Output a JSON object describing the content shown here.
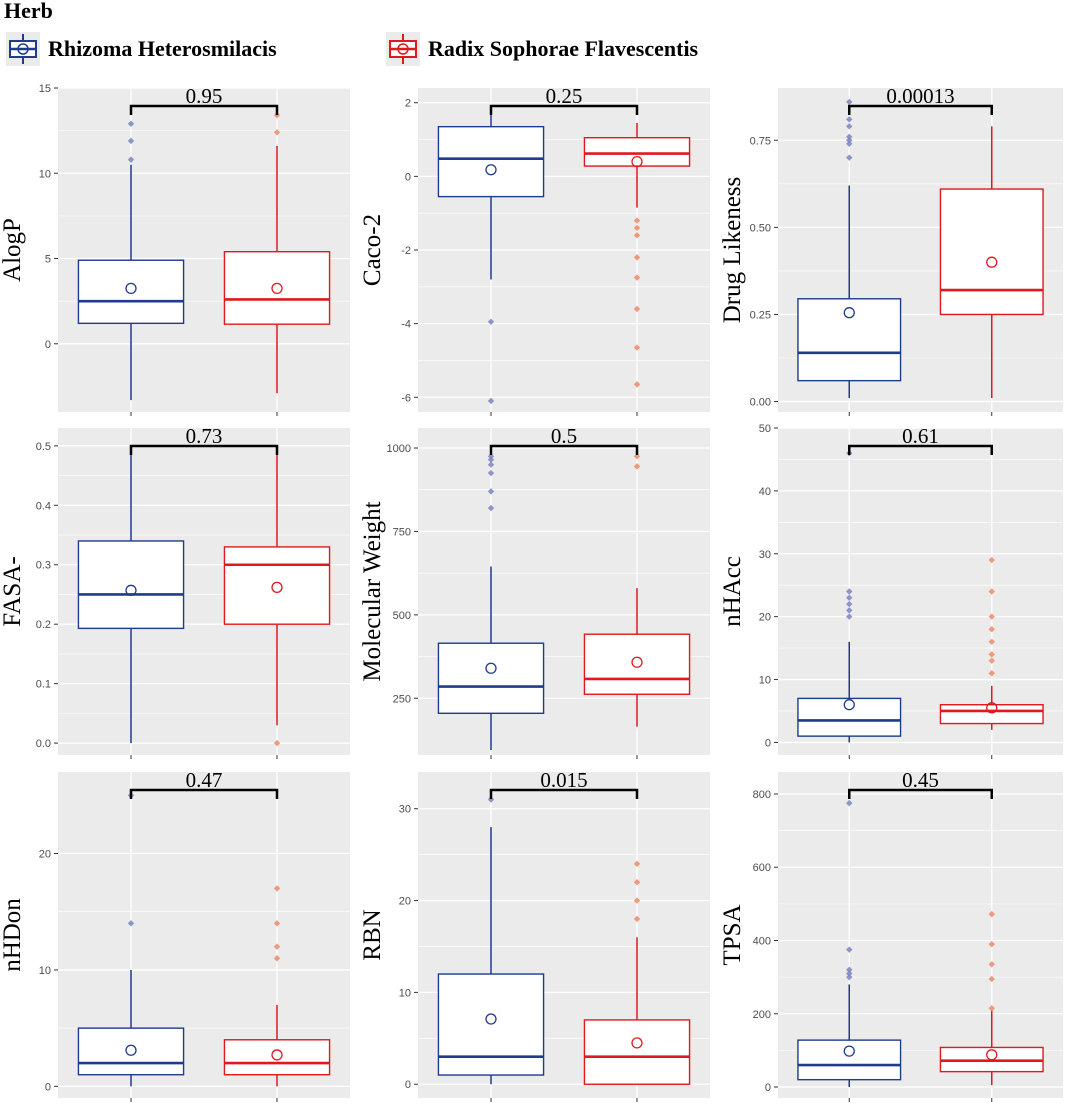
{
  "legend": {
    "title": "Herb",
    "items": [
      {
        "label": "Rhizoma Heterosmilacis",
        "color": "#1f3b8c"
      },
      {
        "label": "Radix Sophorae Flavescentis",
        "color": "#e0191e"
      }
    ]
  },
  "colors": {
    "panel_bg": "#ebebeb",
    "grid": "#ffffff",
    "blue": "#1f3b8c",
    "red": "#e0191e",
    "blue_outlier": "#7d84bd",
    "red_outlier": "#ef8a66"
  },
  "chart_data": [
    {
      "type": "box",
      "ylabel": "AlogP",
      "ylim": [
        -4,
        15
      ],
      "ticks": [
        0,
        5,
        10,
        15
      ],
      "p_value": "0.95",
      "series": [
        {
          "name": "Rhizoma Heterosmilacis",
          "whisker_low": -3.3,
          "q1": 1.2,
          "median": 2.5,
          "q3": 4.9,
          "whisker_high": 10.5,
          "mean": 3.25,
          "outliers": [
            10.8,
            11.9,
            12.9
          ]
        },
        {
          "name": "Radix Sophorae Flavescentis",
          "whisker_low": -2.9,
          "q1": 1.15,
          "median": 2.6,
          "q3": 5.4,
          "whisker_high": 11.6,
          "mean": 3.25,
          "outliers": [
            12.4,
            13.4
          ]
        }
      ]
    },
    {
      "type": "box",
      "ylabel": "Caco-2",
      "ylim": [
        -6.4,
        2.4
      ],
      "ticks": [
        -6,
        -4,
        -2,
        0,
        2
      ],
      "p_value": "0.25",
      "series": [
        {
          "name": "Rhizoma Heterosmilacis",
          "whisker_low": -2.8,
          "q1": -0.55,
          "median": 0.48,
          "q3": 1.35,
          "whisker_high": 1.85,
          "mean": 0.18,
          "outliers": [
            -3.95,
            -6.1
          ]
        },
        {
          "name": "Radix Sophorae Flavescentis",
          "whisker_low": -0.85,
          "q1": 0.28,
          "median": 0.62,
          "q3": 1.05,
          "whisker_high": 1.45,
          "mean": 0.4,
          "outliers": [
            -1.2,
            -1.4,
            -1.6,
            -2.2,
            -2.75,
            -3.6,
            -4.65,
            -5.65
          ]
        }
      ]
    },
    {
      "type": "box",
      "ylabel": "Drug Likeness",
      "ylim": [
        -0.03,
        0.9
      ],
      "ticks": [
        0.0,
        0.25,
        0.5,
        0.75
      ],
      "tick_decimals": 2,
      "p_value": "0.00013",
      "series": [
        {
          "name": "Rhizoma Heterosmilacis",
          "whisker_low": 0.01,
          "q1": 0.06,
          "median": 0.14,
          "q3": 0.295,
          "whisker_high": 0.62,
          "mean": 0.255,
          "outliers": [
            0.7,
            0.74,
            0.75,
            0.76,
            0.79,
            0.81,
            0.86
          ]
        },
        {
          "name": "Radix Sophorae Flavescentis",
          "whisker_low": 0.01,
          "q1": 0.25,
          "median": 0.32,
          "q3": 0.61,
          "whisker_high": 0.79,
          "mean": 0.4,
          "outliers": []
        }
      ]
    },
    {
      "type": "box",
      "ylabel": "FASA-",
      "ylim": [
        -0.02,
        0.53
      ],
      "ticks": [
        0.0,
        0.1,
        0.2,
        0.3,
        0.4,
        0.5
      ],
      "tick_decimals": 1,
      "p_value": "0.73",
      "series": [
        {
          "name": "Rhizoma Heterosmilacis",
          "whisker_low": 0.0,
          "q1": 0.193,
          "median": 0.25,
          "q3": 0.34,
          "whisker_high": 0.49,
          "mean": 0.257,
          "outliers": []
        },
        {
          "name": "Radix Sophorae Flavescentis",
          "whisker_low": 0.03,
          "q1": 0.2,
          "median": 0.3,
          "q3": 0.33,
          "whisker_high": 0.49,
          "mean": 0.262,
          "outliers": [
            0.0
          ]
        }
      ]
    },
    {
      "type": "box",
      "ylabel": "Molecular Weight",
      "ylim": [
        80,
        1060
      ],
      "ticks": [
        250,
        500,
        750,
        1000
      ],
      "p_value": "0.5",
      "series": [
        {
          "name": "Rhizoma Heterosmilacis",
          "whisker_low": 95,
          "q1": 205,
          "median": 285,
          "q3": 415,
          "whisker_high": 645,
          "mean": 340,
          "outliers": [
            820,
            870,
            925,
            950,
            965,
            975
          ]
        },
        {
          "name": "Radix Sophorae Flavescentis",
          "whisker_low": 165,
          "q1": 262,
          "median": 308,
          "q3": 442,
          "whisker_high": 580,
          "mean": 358,
          "outliers": [
            945,
            975
          ]
        }
      ]
    },
    {
      "type": "box",
      "ylabel": "nHAcc",
      "ylim": [
        -2,
        50
      ],
      "ticks": [
        0,
        10,
        20,
        30,
        40,
        50
      ],
      "p_value": "0.61",
      "series": [
        {
          "name": "Rhizoma Heterosmilacis",
          "whisker_low": 0,
          "q1": 1,
          "median": 3.5,
          "q3": 7,
          "whisker_high": 16,
          "mean": 6,
          "outliers": [
            20,
            21,
            22,
            23,
            24,
            46
          ]
        },
        {
          "name": "Radix Sophorae Flavescentis",
          "whisker_low": 2,
          "q1": 3,
          "median": 5,
          "q3": 6,
          "whisker_high": 9,
          "mean": 5.5,
          "outliers": [
            11,
            13,
            14,
            16,
            18,
            20,
            24,
            29
          ]
        }
      ]
    },
    {
      "type": "box",
      "ylabel": "nHDon",
      "ylim": [
        -1,
        27
      ],
      "ticks": [
        0,
        10,
        20
      ],
      "p_value": "0.47",
      "series": [
        {
          "name": "Rhizoma Heterosmilacis",
          "whisker_low": 0,
          "q1": 1,
          "median": 2,
          "q3": 5,
          "whisker_high": 10,
          "mean": 3.1,
          "outliers": [
            14,
            25
          ]
        },
        {
          "name": "Radix Sophorae Flavescentis",
          "whisker_low": 0,
          "q1": 1,
          "median": 2,
          "q3": 4,
          "whisker_high": 7,
          "mean": 2.7,
          "outliers": [
            11,
            12,
            14,
            17
          ]
        }
      ]
    },
    {
      "type": "box",
      "ylabel": "RBN",
      "ylim": [
        -1.5,
        34
      ],
      "ticks": [
        0,
        10,
        20,
        30
      ],
      "p_value": "0.015",
      "series": [
        {
          "name": "Rhizoma Heterosmilacis",
          "whisker_low": 0,
          "q1": 1,
          "median": 3,
          "q3": 12,
          "whisker_high": 28,
          "mean": 7.1,
          "outliers": [
            31
          ]
        },
        {
          "name": "Radix Sophorae Flavescentis",
          "whisker_low": 0,
          "q1": 0,
          "median": 3,
          "q3": 7,
          "whisker_high": 16,
          "mean": 4.5,
          "outliers": [
            18,
            20,
            22,
            24
          ]
        }
      ]
    },
    {
      "type": "box",
      "ylabel": "TPSA",
      "ylim": [
        -30,
        860
      ],
      "ticks": [
        0,
        200,
        400,
        600,
        800
      ],
      "p_value": "0.45",
      "series": [
        {
          "name": "Rhizoma Heterosmilacis",
          "whisker_low": 0,
          "q1": 20,
          "median": 60,
          "q3": 128,
          "whisker_high": 280,
          "mean": 98,
          "outliers": [
            300,
            310,
            320,
            375,
            775
          ]
        },
        {
          "name": "Radix Sophorae Flavescentis",
          "whisker_low": 5,
          "q1": 42,
          "median": 72,
          "q3": 108,
          "whisker_high": 210,
          "mean": 88,
          "outliers": [
            215,
            295,
            335,
            390,
            472
          ]
        }
      ]
    }
  ]
}
